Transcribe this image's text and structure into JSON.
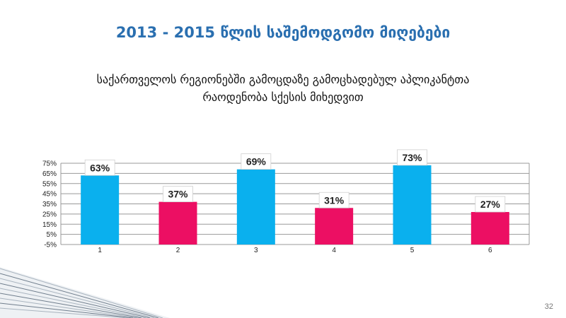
{
  "slide": {
    "title": "2013 - 2015 წლის საშემოდგომო მიღებები",
    "subtitle_line1": "საქართველოს რეგიონებში გამოცდაზე გამოცხადებულ აპლიკანტთა",
    "subtitle_line2": "რაოდენობა სქესის მიხედვით",
    "page_number": "32"
  },
  "colors": {
    "blue": "#0ab0ee",
    "pink": "#ec0f63",
    "grid": "#999999",
    "title": "#2a6fb0"
  },
  "chart_data": {
    "type": "bar",
    "categories": [
      "1",
      "2",
      "3",
      "4",
      "5",
      "6"
    ],
    "values": [
      63,
      37,
      69,
      31,
      73,
      27
    ],
    "data_labels": [
      "63%",
      "37%",
      "69%",
      "31%",
      "73%",
      "27%"
    ],
    "bar_colors": [
      "#0ab0ee",
      "#ec0f63",
      "#0ab0ee",
      "#ec0f63",
      "#0ab0ee",
      "#ec0f63"
    ],
    "y_ticks": [
      75,
      65,
      55,
      45,
      35,
      25,
      15,
      5,
      -5
    ],
    "y_tick_labels": [
      "75%",
      "65%",
      "55%",
      "45%",
      "35%",
      "25%",
      "15%",
      "5%",
      "-5%"
    ],
    "ylim": [
      -5,
      75
    ],
    "grid": true,
    "title": "",
    "xlabel": "",
    "ylabel": ""
  }
}
